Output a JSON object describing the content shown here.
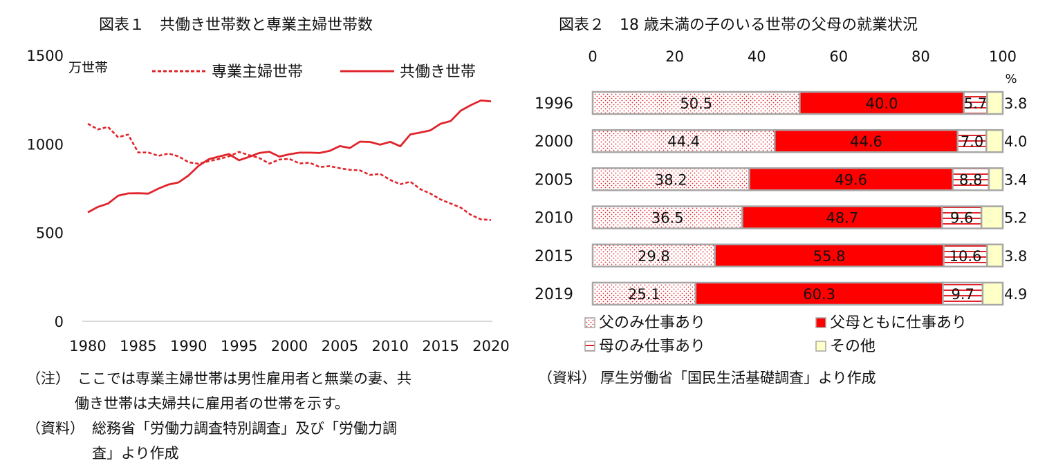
{
  "chart_data": [
    {
      "type": "line",
      "title": "図表１　共働き世帯数と専業主婦世帯数",
      "ylabel": "万世帯",
      "ylim": [
        0,
        1500
      ],
      "yticks": [
        "0",
        "500",
        "1000",
        "1500"
      ],
      "xticks": [
        "1980",
        "1985",
        "1990",
        "1995",
        "2000",
        "2005",
        "2010",
        "2015",
        "2020"
      ],
      "x": [
        1980,
        1981,
        1982,
        1983,
        1984,
        1985,
        1986,
        1987,
        1988,
        1989,
        1990,
        1991,
        1992,
        1993,
        1994,
        1995,
        1996,
        1997,
        1998,
        1999,
        2000,
        2001,
        2002,
        2003,
        2004,
        2005,
        2006,
        2007,
        2008,
        2009,
        2010,
        2011,
        2012,
        2013,
        2014,
        2015,
        2016,
        2017,
        2018,
        2019,
        2020
      ],
      "legend_position": "top",
      "series": [
        {
          "name": "専業主婦世帯",
          "style": "dashed",
          "color": "#e0242a",
          "values": [
            1114,
            1082,
            1096,
            1038,
            1053,
            952,
            952,
            933,
            946,
            930,
            897,
            888,
            903,
            915,
            930,
            955,
            937,
            921,
            889,
            912,
            916,
            890,
            894,
            870,
            875,
            863,
            854,
            851,
            825,
            831,
            797,
            773,
            787,
            745,
            720,
            687,
            664,
            641,
            600,
            575,
            571
          ]
        },
        {
          "name": "共働き世帯",
          "style": "solid",
          "color": "#e0242a",
          "values": [
            614,
            645,
            664,
            708,
            721,
            722,
            720,
            748,
            771,
            783,
            823,
            877,
            914,
            929,
            943,
            908,
            927,
            949,
            956,
            929,
            942,
            951,
            951,
            949,
            961,
            988,
            977,
            1013,
            1011,
            996,
            1012,
            987,
            1054,
            1065,
            1077,
            1114,
            1129,
            1188,
            1219,
            1245,
            1240
          ]
        }
      ],
      "notes": [
        {
          "label": "（注）",
          "text": "ここでは専業主婦世帯は男性雇用者と無業の妻、共"
        },
        {
          "label": "",
          "text": "働き世帯は夫婦共に雇用者の世帯を示す。"
        },
        {
          "label": "（資料）",
          "text": "総務省「労働力調査特別調査」及び「労働力調"
        },
        {
          "label": "",
          "text": "査」より作成"
        }
      ]
    },
    {
      "type": "bar",
      "orientation": "horizontal",
      "stacked": true,
      "title": "図表２　18 歳未満の子のいる世帯の父母の就業状況",
      "unit": "%",
      "xlim": [
        0,
        100
      ],
      "xticks": [
        "0",
        "20",
        "40",
        "60",
        "80",
        "100"
      ],
      "categories": [
        "1996",
        "2000",
        "2005",
        "2010",
        "2015",
        "2019"
      ],
      "series": [
        {
          "name": "父のみ仕事あり",
          "pattern": "dots",
          "color": "#e0242a",
          "values": [
            50.5,
            44.4,
            38.2,
            36.5,
            29.8,
            25.1
          ],
          "labels": [
            "50.5",
            "44.4",
            "38.2",
            "36.5",
            "29.8",
            "25.1"
          ]
        },
        {
          "name": "父母ともに仕事あり",
          "pattern": "solid",
          "color": "#ff0000",
          "values": [
            40.0,
            44.6,
            49.6,
            48.7,
            55.8,
            60.3
          ],
          "labels": [
            "40.0",
            "44.6",
            "49.6",
            "48.7",
            "55.8",
            "60.3"
          ]
        },
        {
          "name": "母のみ仕事あり",
          "pattern": "stripes",
          "color": "#e0242a",
          "values": [
            5.7,
            7.0,
            8.8,
            9.6,
            10.6,
            9.7
          ],
          "labels": [
            "5.7",
            "7.0",
            "8.8",
            "9.6",
            "10.6",
            "9.7"
          ]
        },
        {
          "name": "その他",
          "pattern": "solid",
          "color": "#ffffc8",
          "values": [
            3.8,
            4.0,
            3.4,
            5.2,
            3.8,
            4.9
          ],
          "labels": [
            "3.8",
            "4.0",
            "3.4",
            "5.2",
            "3.8",
            "4.9"
          ]
        }
      ],
      "legend_position": "bottom",
      "notes": [
        {
          "label": "（資料）",
          "text": "厚生労働省「国民生活基礎調査」より作成"
        }
      ]
    }
  ]
}
